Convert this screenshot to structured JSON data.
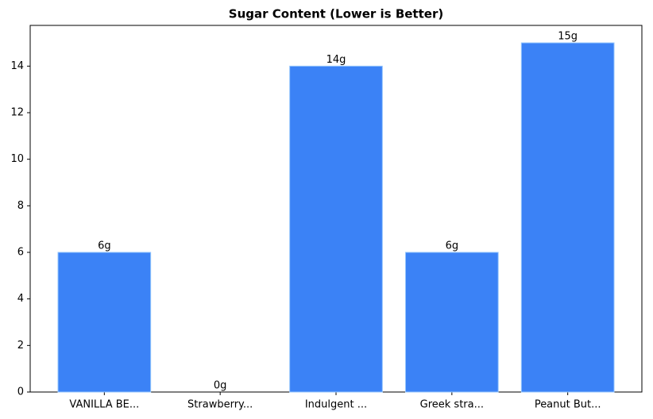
{
  "chart_data": {
    "type": "bar",
    "title": "Sugar Content (Lower is Better)",
    "categories": [
      "VANILLA BE...",
      "Strawberry...",
      "Indulgent ...",
      "Greek stra...",
      "Peanut But..."
    ],
    "values": [
      6,
      0,
      14,
      6,
      15
    ],
    "value_labels": [
      "6g",
      "0g",
      "14g",
      "6g",
      "15g"
    ],
    "color": "#3b82f6",
    "ylim": [
      0,
      15.75
    ],
    "yticks": [
      0,
      2,
      4,
      6,
      8,
      10,
      12,
      14
    ],
    "grid": false
  }
}
